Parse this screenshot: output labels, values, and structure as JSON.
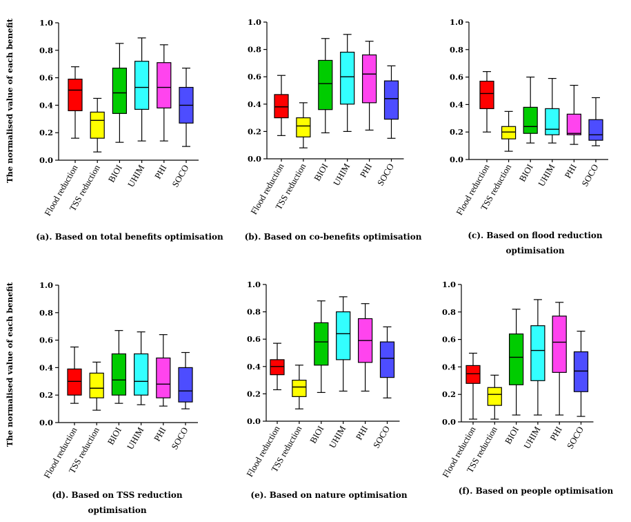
{
  "ylabel": "The normalised value of each benefit",
  "colors": [
    "#ff0000",
    "#ffff00",
    "#00cc00",
    "#33ffff",
    "#ff44ee",
    "#4d4dff"
  ],
  "chart_data": [
    {
      "type": "boxplot",
      "ylim": [
        0,
        1
      ],
      "yticks": [
        "0.0",
        "0.2",
        "0.4",
        "0.6",
        "0.8",
        "1.0"
      ],
      "categories": [
        "Flood reduction",
        "TSS reduction",
        "BIOI",
        "UHIM",
        "PHI",
        "SOCO"
      ],
      "caption": [
        "(a). Based on total benefits optimisation"
      ],
      "boxes": [
        {
          "min": 0.16,
          "q1": 0.36,
          "median": 0.51,
          "q3": 0.59,
          "max": 0.68
        },
        {
          "min": 0.06,
          "q1": 0.16,
          "median": 0.29,
          "q3": 0.35,
          "max": 0.45
        },
        {
          "min": 0.13,
          "q1": 0.34,
          "median": 0.49,
          "q3": 0.67,
          "max": 0.85
        },
        {
          "min": 0.14,
          "q1": 0.37,
          "median": 0.53,
          "q3": 0.72,
          "max": 0.89
        },
        {
          "min": 0.14,
          "q1": 0.38,
          "median": 0.53,
          "q3": 0.71,
          "max": 0.84
        },
        {
          "min": 0.1,
          "q1": 0.27,
          "median": 0.4,
          "q3": 0.53,
          "max": 0.67
        }
      ]
    },
    {
      "type": "boxplot",
      "ylim": [
        0,
        1
      ],
      "yticks": [
        "0.0",
        "0.2",
        "0.4",
        "0.6",
        "0.8",
        "1.0"
      ],
      "categories": [
        "Flood reduction",
        "TSS reduction",
        "BIOI",
        "UHIM",
        "PHI",
        "SOCO"
      ],
      "caption": [
        "(b). Based on co-benefits optimisation"
      ],
      "boxes": [
        {
          "min": 0.17,
          "q1": 0.3,
          "median": 0.38,
          "q3": 0.47,
          "max": 0.61
        },
        {
          "min": 0.08,
          "q1": 0.16,
          "median": 0.24,
          "q3": 0.3,
          "max": 0.41
        },
        {
          "min": 0.19,
          "q1": 0.36,
          "median": 0.55,
          "q3": 0.72,
          "max": 0.88
        },
        {
          "min": 0.2,
          "q1": 0.4,
          "median": 0.6,
          "q3": 0.78,
          "max": 0.91
        },
        {
          "min": 0.21,
          "q1": 0.41,
          "median": 0.62,
          "q3": 0.76,
          "max": 0.86
        },
        {
          "min": 0.15,
          "q1": 0.29,
          "median": 0.44,
          "q3": 0.57,
          "max": 0.68
        }
      ]
    },
    {
      "type": "boxplot",
      "ylim": [
        0,
        1
      ],
      "yticks": [
        "0.0",
        "0.2",
        "0.4",
        "0.6",
        "0.8",
        "1.0"
      ],
      "categories": [
        "Flood reduction",
        "TSS reduction",
        "BIOI",
        "UHIM",
        "PHI",
        "SOCO"
      ],
      "caption": [
        "(c). Based on flood reduction",
        "optimisation"
      ],
      "boxes": [
        {
          "min": 0.2,
          "q1": 0.37,
          "median": 0.48,
          "q3": 0.57,
          "max": 0.64
        },
        {
          "min": 0.06,
          "q1": 0.15,
          "median": 0.2,
          "q3": 0.24,
          "max": 0.35
        },
        {
          "min": 0.12,
          "q1": 0.19,
          "median": 0.24,
          "q3": 0.38,
          "max": 0.6
        },
        {
          "min": 0.12,
          "q1": 0.18,
          "median": 0.22,
          "q3": 0.37,
          "max": 0.59
        },
        {
          "min": 0.11,
          "q1": 0.18,
          "median": 0.19,
          "q3": 0.33,
          "max": 0.54
        },
        {
          "min": 0.1,
          "q1": 0.14,
          "median": 0.18,
          "q3": 0.29,
          "max": 0.45
        }
      ]
    },
    {
      "type": "boxplot",
      "ylim": [
        0,
        1
      ],
      "yticks": [
        "0.0",
        "0.2",
        "0.4",
        "0.6",
        "0.8",
        "1.0"
      ],
      "categories": [
        "Flood reduction",
        "TSS reduction",
        "BIOI",
        "UHIM",
        "PHI",
        "SOCO"
      ],
      "caption": [
        "(d).  Based  on  TSS  reduction",
        "optimisation"
      ],
      "boxes": [
        {
          "min": 0.14,
          "q1": 0.2,
          "median": 0.3,
          "q3": 0.39,
          "max": 0.55
        },
        {
          "min": 0.09,
          "q1": 0.18,
          "median": 0.25,
          "q3": 0.36,
          "max": 0.44
        },
        {
          "min": 0.14,
          "q1": 0.2,
          "median": 0.31,
          "q3": 0.5,
          "max": 0.67
        },
        {
          "min": 0.13,
          "q1": 0.2,
          "median": 0.3,
          "q3": 0.5,
          "max": 0.66
        },
        {
          "min": 0.12,
          "q1": 0.18,
          "median": 0.28,
          "q3": 0.47,
          "max": 0.64
        },
        {
          "min": 0.1,
          "q1": 0.15,
          "median": 0.23,
          "q3": 0.4,
          "max": 0.51
        }
      ]
    },
    {
      "type": "boxplot",
      "ylim": [
        0,
        1
      ],
      "yticks": [
        "0.0",
        "0.2",
        "0.4",
        "0.6",
        "0.8",
        "1.0"
      ],
      "categories": [
        "Flood reduction",
        "TSS reduction",
        "BIOI",
        "UHIM",
        "PHI",
        "SOCO"
      ],
      "caption": [
        "(e). Based on nature optimisation"
      ],
      "boxes": [
        {
          "min": 0.23,
          "q1": 0.34,
          "median": 0.4,
          "q3": 0.45,
          "max": 0.57
        },
        {
          "min": 0.09,
          "q1": 0.18,
          "median": 0.25,
          "q3": 0.3,
          "max": 0.41
        },
        {
          "min": 0.21,
          "q1": 0.41,
          "median": 0.58,
          "q3": 0.72,
          "max": 0.88
        },
        {
          "min": 0.22,
          "q1": 0.45,
          "median": 0.64,
          "q3": 0.8,
          "max": 0.91
        },
        {
          "min": 0.22,
          "q1": 0.43,
          "median": 0.59,
          "q3": 0.75,
          "max": 0.86
        },
        {
          "min": 0.17,
          "q1": 0.32,
          "median": 0.46,
          "q3": 0.58,
          "max": 0.69
        }
      ]
    },
    {
      "type": "boxplot",
      "ylim": [
        0,
        1
      ],
      "yticks": [
        "0.0",
        "0.2",
        "0.4",
        "0.6",
        "0.8",
        "1.0"
      ],
      "categories": [
        "Flood reduction",
        "TSS reduction",
        "BIOI",
        "UHIM",
        "PHI",
        "SOCO"
      ],
      "caption": [
        "(f). Based on people optimisation"
      ],
      "boxes": [
        {
          "min": 0.02,
          "q1": 0.28,
          "median": 0.35,
          "q3": 0.41,
          "max": 0.5
        },
        {
          "min": 0.02,
          "q1": 0.12,
          "median": 0.2,
          "q3": 0.25,
          "max": 0.34
        },
        {
          "min": 0.05,
          "q1": 0.27,
          "median": 0.47,
          "q3": 0.64,
          "max": 0.82
        },
        {
          "min": 0.05,
          "q1": 0.3,
          "median": 0.52,
          "q3": 0.7,
          "max": 0.89
        },
        {
          "min": 0.05,
          "q1": 0.36,
          "median": 0.58,
          "q3": 0.77,
          "max": 0.87
        },
        {
          "min": 0.04,
          "q1": 0.22,
          "median": 0.37,
          "q3": 0.51,
          "max": 0.66
        }
      ]
    }
  ]
}
